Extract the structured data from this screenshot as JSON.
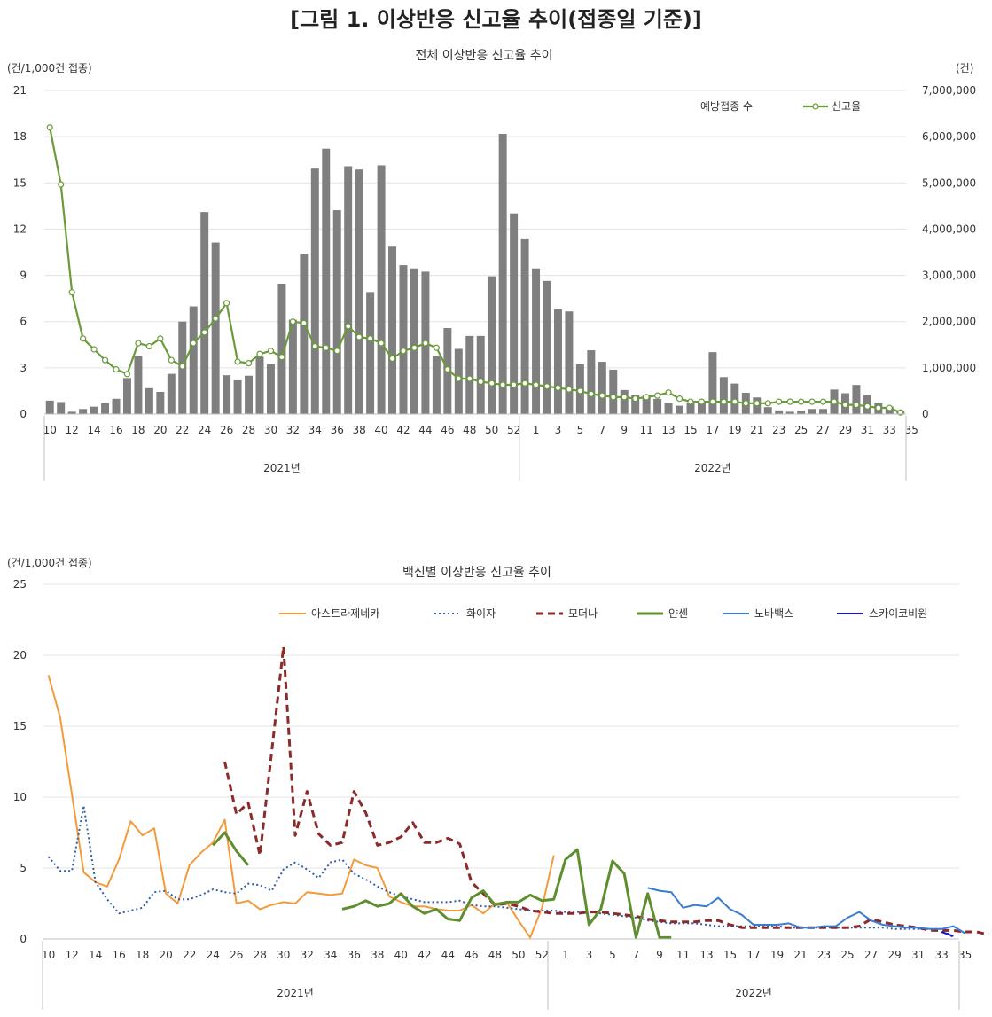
{
  "figure_title": "[그림 1. 이상반응 신고율 추이(접종일 기준)]",
  "chart_data": [
    {
      "type": "bar",
      "title": "전체 이상반응 신고율 추이",
      "ylabel_left": "(건/1,000건 접종)",
      "ylabel_right": "(건)",
      "left_ticks": [
        "0",
        "3",
        "6",
        "9",
        "12",
        "15",
        "18",
        "21"
      ],
      "right_ticks": [
        "0",
        "1,000,000",
        "2,000,000",
        "3,000,000",
        "4,000,000",
        "5,000,000",
        "6,000,000",
        "7,000,000"
      ],
      "ylim_left": [
        0,
        21
      ],
      "ylim_right": [
        0,
        7000000
      ],
      "x_tick_labels": [
        "10",
        "12",
        "14",
        "16",
        "18",
        "20",
        "22",
        "24",
        "26",
        "28",
        "30",
        "32",
        "34",
        "36",
        "38",
        "40",
        "42",
        "44",
        "46",
        "48",
        "50",
        "52",
        "1",
        "3",
        "5",
        "7",
        "9",
        "11",
        "13",
        "15",
        "17",
        "19",
        "21",
        "23",
        "25",
        "27",
        "29",
        "31",
        "33",
        "35"
      ],
      "year_groups": [
        {
          "label": "2021년",
          "weeks": 43
        },
        {
          "label": "2022년",
          "weeks": 35
        }
      ],
      "x_weeks": [
        "10",
        "11",
        "12",
        "13",
        "14",
        "15",
        "16",
        "17",
        "18",
        "19",
        "20",
        "21",
        "22",
        "23",
        "24",
        "25",
        "26",
        "27",
        "28",
        "29",
        "30",
        "31",
        "32",
        "33",
        "34",
        "35",
        "36",
        "37",
        "38",
        "39",
        "40",
        "41",
        "42",
        "43",
        "44",
        "45",
        "46",
        "47",
        "48",
        "49",
        "50",
        "51",
        "52",
        "1",
        "2",
        "3",
        "4",
        "5",
        "6",
        "7",
        "8",
        "9",
        "10",
        "11",
        "12",
        "13",
        "14",
        "15",
        "16",
        "17",
        "18",
        "19",
        "20",
        "21",
        "22",
        "23",
        "24",
        "25",
        "26",
        "27",
        "28",
        "29",
        "30",
        "31",
        "32",
        "33",
        "34",
        "35"
      ],
      "legend_position": "top-right",
      "series": [
        {
          "name": "예방접종 수",
          "kind": "bar",
          "axis": "right",
          "color": "#7f7f7f",
          "values": [
            290000,
            260000,
            50000,
            110000,
            160000,
            230000,
            330000,
            780000,
            1250000,
            560000,
            480000,
            870000,
            2000000,
            2330000,
            4370000,
            3710000,
            840000,
            730000,
            830000,
            1240000,
            1080000,
            2820000,
            2040000,
            3470000,
            5310000,
            5740000,
            4410000,
            5360000,
            5290000,
            2640000,
            5380000,
            3620000,
            3220000,
            3150000,
            3080000,
            1260000,
            1860000,
            1410000,
            1690000,
            1690000,
            2980000,
            6060000,
            4340000,
            3800000,
            3150000,
            2880000,
            2270000,
            2220000,
            1080000,
            1380000,
            1130000,
            960000,
            520000,
            420000,
            400000,
            330000,
            230000,
            180000,
            230000,
            260000,
            1340000,
            800000,
            660000,
            460000,
            360000,
            150000,
            80000,
            50000,
            70000,
            110000,
            110000,
            530000,
            450000,
            630000,
            420000,
            240000,
            160000,
            80000
          ]
        },
        {
          "name": "신고율",
          "kind": "line",
          "axis": "left",
          "color": "#6a9a3a",
          "values": [
            18.6,
            14.9,
            7.9,
            4.9,
            4.2,
            3.5,
            2.9,
            2.6,
            4.6,
            4.4,
            4.9,
            3.5,
            3.1,
            4.6,
            5.3,
            6.2,
            7.2,
            3.4,
            3.3,
            3.9,
            4.1,
            3.7,
            6.0,
            5.9,
            4.4,
            4.3,
            4.1,
            5.7,
            5.0,
            4.9,
            4.6,
            3.6,
            4.1,
            4.3,
            4.6,
            4.3,
            2.9,
            2.3,
            2.3,
            2.1,
            2.0,
            1.9,
            1.9,
            2.0,
            1.9,
            1.8,
            1.7,
            1.6,
            1.5,
            1.3,
            1.2,
            1.1,
            1.1,
            1.0,
            1.1,
            1.2,
            1.4,
            1.0,
            0.8,
            0.8,
            0.8,
            0.8,
            0.8,
            0.7,
            0.7,
            0.7,
            0.8,
            0.8,
            0.8,
            0.8,
            0.8,
            0.8,
            0.6,
            0.6,
            0.5,
            0.4,
            0.4,
            0.1
          ]
        }
      ]
    },
    {
      "type": "line",
      "title": "백신별 이상반응 신고율 추이",
      "ylabel": "(건/1,000건 접종)",
      "y_ticks": [
        "0",
        "5",
        "10",
        "15",
        "20",
        "25"
      ],
      "ylim": [
        0,
        25
      ],
      "x_tick_labels": [
        "10",
        "12",
        "14",
        "16",
        "18",
        "20",
        "22",
        "24",
        "26",
        "28",
        "30",
        "32",
        "34",
        "36",
        "38",
        "40",
        "42",
        "44",
        "46",
        "48",
        "50",
        "52",
        "1",
        "3",
        "5",
        "7",
        "9",
        "11",
        "13",
        "15",
        "17",
        "19",
        "21",
        "23",
        "25",
        "27",
        "29",
        "31",
        "33",
        "35"
      ],
      "year_groups": [
        {
          "label": "2021년",
          "weeks": 43
        },
        {
          "label": "2022년",
          "weeks": 35
        }
      ],
      "legend_position": "top",
      "series": [
        {
          "name": "아스트라제네카",
          "color": "#f59a3c",
          "dash": "solid",
          "width": 2,
          "start": 0,
          "values": [
            18.6,
            15.6,
            10.2,
            4.7,
            4.0,
            3.7,
            5.6,
            8.3,
            7.3,
            7.8,
            3.2,
            2.5,
            5.2,
            6.1,
            6.8,
            8.4,
            2.5,
            2.7,
            2.1,
            2.4,
            2.6,
            2.5,
            3.3,
            3.2,
            3.1,
            3.2,
            5.6,
            5.2,
            5.0,
            3.0,
            2.6,
            2.3,
            2.3,
            2.1,
            2.0,
            2.0,
            2.4,
            1.8,
            2.5,
            2.6,
            1.3,
            0.1,
            2.2,
            5.9
          ]
        },
        {
          "name": "화이자",
          "color": "#2e5fa8",
          "dash": "dotted",
          "width": 2,
          "start": 0,
          "values": [
            5.8,
            4.8,
            4.8,
            9.4,
            4.0,
            2.8,
            1.8,
            2.0,
            2.2,
            3.3,
            3.4,
            2.8,
            2.8,
            3.1,
            3.5,
            3.3,
            3.2,
            3.9,
            3.8,
            3.4,
            4.9,
            5.4,
            4.9,
            4.3,
            5.4,
            5.6,
            4.6,
            4.2,
            3.7,
            3.3,
            3.0,
            2.8,
            2.6,
            2.6,
            2.6,
            2.7,
            2.4,
            2.3,
            2.3,
            2.2,
            2.1,
            2.0,
            2.0,
            2.0,
            1.9,
            1.9,
            1.9,
            1.8,
            1.7,
            1.6,
            1.5,
            1.3,
            1.2,
            1.1,
            1.1,
            1.1,
            1.0,
            0.9,
            0.9,
            0.9,
            0.9,
            0.9,
            0.9,
            0.8,
            0.8,
            0.8,
            0.8,
            0.8,
            0.8,
            0.8,
            0.8,
            0.8,
            0.7,
            0.7,
            0.7,
            0.7,
            0.7,
            0.1
          ]
        },
        {
          "name": "모더나",
          "color": "#8b2a2a",
          "dash": "dashed",
          "width": 3,
          "start": 15,
          "values": [
            12.5,
            8.8,
            9.6,
            5.9,
            13.2,
            20.6,
            7.3,
            10.4,
            7.4,
            6.6,
            6.8,
            10.4,
            8.9,
            6.6,
            6.8,
            7.2,
            8.2,
            6.8,
            6.8,
            7.1,
            6.7,
            4.0,
            3.2,
            2.4,
            2.5,
            2.3,
            2.0,
            1.9,
            1.8,
            1.8,
            1.8,
            1.9,
            1.9,
            1.8,
            1.7,
            1.6,
            1.4,
            1.3,
            1.2,
            1.2,
            1.2,
            1.3,
            1.3,
            1.0,
            0.8,
            0.8,
            0.8,
            0.8,
            0.8,
            0.8,
            0.8,
            0.8,
            0.8,
            0.8,
            0.9,
            1.4,
            1.2,
            1.0,
            0.9,
            0.8,
            0.6,
            0.6,
            0.6,
            0.5,
            0.5,
            0.3
          ]
        },
        {
          "name": "얀센",
          "color": "#5e8e2e",
          "dash": "solid",
          "width": 3,
          "segments": [
            {
              "start": 14,
              "values": [
                6.6,
                7.5,
                6.2,
                5.2
              ]
            },
            {
              "start": 25,
              "values": [
                2.1,
                2.3,
                2.7,
                2.3,
                2.5,
                3.2,
                2.3,
                1.8,
                2.1,
                1.4,
                1.3,
                2.9,
                3.4,
                2.4,
                2.6,
                2.6,
                3.1,
                2.7,
                2.8,
                5.6,
                6.3,
                1.0,
                2.1,
                5.5,
                4.6,
                0.1,
                3.2,
                0.1,
                0.1
              ]
            }
          ]
        },
        {
          "name": "노바백스",
          "color": "#3b7bd1",
          "dash": "solid",
          "width": 2,
          "start": 51,
          "values": [
            3.6,
            3.4,
            3.3,
            2.2,
            2.4,
            2.3,
            2.9,
            2.1,
            1.7,
            1.0,
            1.0,
            1.0,
            1.1,
            0.8,
            0.8,
            0.9,
            0.9,
            1.5,
            1.9,
            1.3,
            1.0,
            0.9,
            0.8,
            0.8,
            0.7,
            0.7,
            0.9,
            0.4
          ]
        },
        {
          "name": "스카이코비원",
          "color": "#1515c8",
          "dash": "solid",
          "width": 2,
          "start": 76,
          "values": [
            0.5,
            0.2
          ]
        }
      ]
    }
  ]
}
